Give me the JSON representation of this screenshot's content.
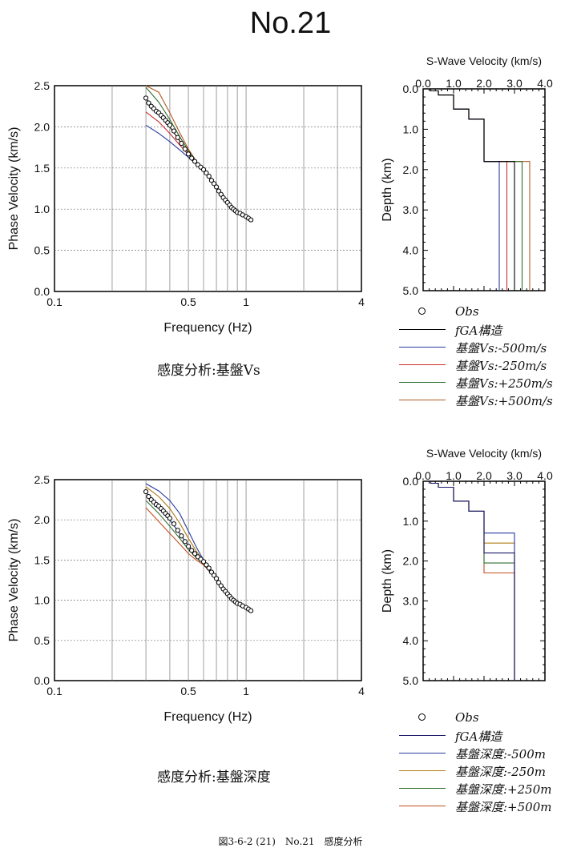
{
  "page": {
    "title": "No.21",
    "caption": "図3-6-2 (21)　No.21　感度分析"
  },
  "sections": [
    {
      "subtitle": "感度分析:基盤Vs"
    },
    {
      "subtitle": "感度分析:基盤深度"
    }
  ],
  "legends": [
    [
      {
        "label": "Obs",
        "color": "#000000",
        "marker": "circle"
      },
      {
        "label": "fGA構造",
        "color": "#000000",
        "marker": "line"
      },
      {
        "label": "基盤Vs:-500m/s",
        "color": "#2a3aa0",
        "marker": "line"
      },
      {
        "label": "基盤Vs:-250m/s",
        "color": "#c83030",
        "marker": "line"
      },
      {
        "label": "基盤Vs:+250m/s",
        "color": "#2f6e2f",
        "marker": "line"
      },
      {
        "label": "基盤Vs:+500m/s",
        "color": "#b05a20",
        "marker": "line"
      }
    ],
    [
      {
        "label": "Obs",
        "color": "#000000",
        "marker": "circle"
      },
      {
        "label": "fGA構造",
        "color": "#1a1a6a",
        "marker": "line"
      },
      {
        "label": "基盤深度:-500m",
        "color": "#2a3aa0",
        "marker": "line"
      },
      {
        "label": "基盤深度:-250m",
        "color": "#b07a10",
        "marker": "line"
      },
      {
        "label": "基盤深度:+250m",
        "color": "#2f6e2f",
        "marker": "line"
      },
      {
        "label": "基盤深度:+500m",
        "color": "#c05020",
        "marker": "line"
      }
    ]
  ],
  "chart_data": [
    {
      "type": "line",
      "xlabel": "Frequency (Hz)",
      "ylabel": "Phase Velocity (km/s)",
      "xscale": "log",
      "xlim": [
        0.1,
        4
      ],
      "ylim": [
        0,
        2.5
      ],
      "xticks": [
        0.1,
        0.5,
        1,
        4
      ],
      "yticks": [
        0.0,
        0.5,
        1.0,
        1.5,
        2.0,
        2.5
      ],
      "grid": true,
      "obs": {
        "x": [
          0.3,
          0.31,
          0.32,
          0.33,
          0.34,
          0.35,
          0.36,
          0.37,
          0.38,
          0.39,
          0.4,
          0.42,
          0.44,
          0.46,
          0.48,
          0.5,
          0.52,
          0.54,
          0.56,
          0.58,
          0.6,
          0.62,
          0.64,
          0.66,
          0.68,
          0.7,
          0.72,
          0.74,
          0.76,
          0.78,
          0.8,
          0.82,
          0.84,
          0.86,
          0.88,
          0.9,
          0.93,
          0.96,
          1.0,
          1.03,
          1.06
        ],
        "y": [
          2.35,
          2.29,
          2.25,
          2.22,
          2.19,
          2.17,
          2.14,
          2.11,
          2.08,
          2.05,
          2.02,
          1.95,
          1.87,
          1.8,
          1.73,
          1.67,
          1.62,
          1.58,
          1.54,
          1.51,
          1.48,
          1.44,
          1.4,
          1.35,
          1.31,
          1.27,
          1.22,
          1.18,
          1.14,
          1.11,
          1.08,
          1.05,
          1.02,
          1.0,
          0.98,
          0.96,
          0.95,
          0.93,
          0.91,
          0.89,
          0.87
        ]
      },
      "series": [
        {
          "name": "fGA構造",
          "color": "#000000",
          "x": [
            0.3,
            0.35,
            0.4,
            0.45,
            0.5,
            0.55,
            0.6,
            0.7,
            0.8,
            0.9,
            1.0,
            1.06
          ],
          "y": [
            2.34,
            2.18,
            2.0,
            1.83,
            1.68,
            1.56,
            1.47,
            1.27,
            1.1,
            0.97,
            0.91,
            0.87
          ]
        },
        {
          "name": "基盤Vs:-500m/s",
          "color": "#2a3aa0",
          "x": [
            0.3,
            0.35,
            0.4,
            0.45,
            0.5,
            0.55,
            0.6,
            0.7,
            0.8,
            0.9,
            1.0,
            1.06
          ],
          "y": [
            2.02,
            1.92,
            1.82,
            1.72,
            1.63,
            1.55,
            1.47,
            1.27,
            1.1,
            0.97,
            0.91,
            0.87
          ]
        },
        {
          "name": "基盤Vs:-250m/s",
          "color": "#c83030",
          "x": [
            0.3,
            0.35,
            0.4,
            0.45,
            0.5,
            0.55,
            0.6,
            0.7,
            0.8,
            0.9,
            1.0,
            1.06
          ],
          "y": [
            2.18,
            2.06,
            1.92,
            1.78,
            1.66,
            1.56,
            1.47,
            1.27,
            1.1,
            0.97,
            0.91,
            0.87
          ]
        },
        {
          "name": "基盤Vs:+250m/s",
          "color": "#2f6e2f",
          "x": [
            0.3,
            0.35,
            0.4,
            0.45,
            0.5,
            0.55,
            0.6,
            0.7,
            0.8,
            0.9,
            1.0,
            1.06
          ],
          "y": [
            2.48,
            2.3,
            2.09,
            1.88,
            1.71,
            1.57,
            1.47,
            1.27,
            1.1,
            0.97,
            0.91,
            0.87
          ]
        },
        {
          "name": "基盤Vs:+500m/s",
          "color": "#b05a20",
          "x": [
            0.3,
            0.35,
            0.4,
            0.45,
            0.5,
            0.55,
            0.6,
            0.7,
            0.8,
            0.9,
            1.0,
            1.06
          ],
          "y": [
            2.5,
            2.42,
            2.17,
            1.93,
            1.73,
            1.58,
            1.47,
            1.27,
            1.1,
            0.97,
            0.91,
            0.87
          ]
        }
      ]
    },
    {
      "type": "line",
      "title": "S-Wave Velocity (km/s)",
      "xlabel": "S-Wave Velocity (km/s)",
      "ylabel": "Depth (km)",
      "xlim": [
        0,
        4
      ],
      "ylim": [
        0,
        5
      ],
      "xticks": [
        0.0,
        1.0,
        2.0,
        3.0,
        4.0
      ],
      "yticks": [
        0.0,
        1.0,
        2.0,
        3.0,
        4.0,
        5.0
      ],
      "y_inverted": true,
      "x_axis_position": "top",
      "profiles": [
        {
          "name": "fGA構造",
          "color": "#000000",
          "vs": [
            0.25,
            0.5,
            1.0,
            1.5,
            2.0,
            3.0
          ],
          "bottom": [
            0.05,
            0.15,
            0.5,
            0.75,
            1.8,
            5.0
          ]
        },
        {
          "name": "基盤Vs:-500m/s",
          "color": "#2a3aa0",
          "vs": [
            0.25,
            0.5,
            1.0,
            1.5,
            2.0,
            2.5
          ],
          "bottom": [
            0.05,
            0.15,
            0.5,
            0.75,
            1.8,
            5.0
          ]
        },
        {
          "name": "基盤Vs:-250m/s",
          "color": "#c83030",
          "vs": [
            0.25,
            0.5,
            1.0,
            1.5,
            2.0,
            2.75
          ],
          "bottom": [
            0.05,
            0.15,
            0.5,
            0.75,
            1.8,
            5.0
          ]
        },
        {
          "name": "基盤Vs:+250m/s",
          "color": "#2f6e2f",
          "vs": [
            0.25,
            0.5,
            1.0,
            1.5,
            2.0,
            3.25
          ],
          "bottom": [
            0.05,
            0.15,
            0.5,
            0.75,
            1.8,
            5.0
          ]
        },
        {
          "name": "基盤Vs:+500m/s",
          "color": "#b05a20",
          "vs": [
            0.25,
            0.5,
            1.0,
            1.5,
            2.0,
            3.5
          ],
          "bottom": [
            0.05,
            0.15,
            0.5,
            0.75,
            1.8,
            5.0
          ]
        }
      ]
    },
    {
      "type": "line",
      "xlabel": "Frequency (Hz)",
      "ylabel": "Phase Velocity (km/s)",
      "xscale": "log",
      "xlim": [
        0.1,
        4
      ],
      "ylim": [
        0,
        2.5
      ],
      "xticks": [
        0.1,
        0.5,
        1,
        4
      ],
      "yticks": [
        0.0,
        0.5,
        1.0,
        1.5,
        2.0,
        2.5
      ],
      "grid": true,
      "obs": {
        "x": [
          0.3,
          0.31,
          0.32,
          0.33,
          0.34,
          0.35,
          0.36,
          0.37,
          0.38,
          0.39,
          0.4,
          0.42,
          0.44,
          0.46,
          0.48,
          0.5,
          0.52,
          0.54,
          0.56,
          0.58,
          0.6,
          0.62,
          0.64,
          0.66,
          0.68,
          0.7,
          0.72,
          0.74,
          0.76,
          0.78,
          0.8,
          0.82,
          0.84,
          0.86,
          0.88,
          0.9,
          0.93,
          0.96,
          1.0,
          1.03,
          1.06
        ],
        "y": [
          2.35,
          2.29,
          2.25,
          2.22,
          2.19,
          2.17,
          2.14,
          2.11,
          2.08,
          2.05,
          2.02,
          1.95,
          1.87,
          1.8,
          1.73,
          1.67,
          1.62,
          1.58,
          1.54,
          1.51,
          1.48,
          1.44,
          1.4,
          1.35,
          1.31,
          1.27,
          1.22,
          1.18,
          1.14,
          1.11,
          1.08,
          1.05,
          1.02,
          1.0,
          0.98,
          0.96,
          0.95,
          0.93,
          0.91,
          0.89,
          0.87
        ]
      },
      "series": [
        {
          "name": "fGA構造",
          "color": "#1a1a6a",
          "x": [
            0.3,
            0.35,
            0.4,
            0.45,
            0.5,
            0.55,
            0.6,
            0.7,
            0.8,
            0.9,
            1.0,
            1.06
          ],
          "y": [
            2.34,
            2.18,
            2.0,
            1.83,
            1.68,
            1.56,
            1.47,
            1.27,
            1.1,
            0.97,
            0.91,
            0.87
          ]
        },
        {
          "name": "基盤深度:-500m",
          "color": "#2a3aa0",
          "x": [
            0.3,
            0.35,
            0.4,
            0.45,
            0.5,
            0.55,
            0.6,
            0.7,
            0.8,
            0.9,
            1.0,
            1.06
          ],
          "y": [
            2.45,
            2.36,
            2.24,
            2.08,
            1.86,
            1.66,
            1.5,
            1.28,
            1.1,
            0.97,
            0.91,
            0.87
          ]
        },
        {
          "name": "基盤深度:-250m",
          "color": "#b07a10",
          "x": [
            0.3,
            0.35,
            0.4,
            0.45,
            0.5,
            0.55,
            0.6,
            0.7,
            0.8,
            0.9,
            1.0,
            1.06
          ],
          "y": [
            2.41,
            2.29,
            2.14,
            1.96,
            1.77,
            1.61,
            1.49,
            1.27,
            1.1,
            0.97,
            0.91,
            0.87
          ]
        },
        {
          "name": "基盤深度:+250m",
          "color": "#2f6e2f",
          "x": [
            0.3,
            0.35,
            0.4,
            0.45,
            0.5,
            0.55,
            0.6,
            0.7,
            0.8,
            0.9,
            1.0,
            1.06
          ],
          "y": [
            2.24,
            2.08,
            1.92,
            1.77,
            1.63,
            1.53,
            1.46,
            1.26,
            1.1,
            0.97,
            0.91,
            0.87
          ]
        },
        {
          "name": "基盤深度:+500m",
          "color": "#c05020",
          "x": [
            0.3,
            0.35,
            0.4,
            0.45,
            0.5,
            0.55,
            0.6,
            0.7,
            0.8,
            0.9,
            1.0,
            1.06
          ],
          "y": [
            2.15,
            1.98,
            1.83,
            1.7,
            1.58,
            1.5,
            1.44,
            1.26,
            1.1,
            0.97,
            0.91,
            0.87
          ]
        }
      ]
    },
    {
      "type": "line",
      "title": "S-Wave Velocity (km/s)",
      "xlabel": "S-Wave Velocity (km/s)",
      "ylabel": "Depth (km)",
      "xlim": [
        0,
        4
      ],
      "ylim": [
        0,
        5
      ],
      "xticks": [
        0.0,
        1.0,
        2.0,
        3.0,
        4.0
      ],
      "yticks": [
        0.0,
        1.0,
        2.0,
        3.0,
        4.0,
        5.0
      ],
      "y_inverted": true,
      "x_axis_position": "top",
      "profiles": [
        {
          "name": "fGA構造",
          "color": "#1a1a6a",
          "vs": [
            0.25,
            0.5,
            1.0,
            1.5,
            2.0,
            3.0
          ],
          "bottom": [
            0.05,
            0.15,
            0.5,
            0.75,
            1.8,
            5.0
          ]
        },
        {
          "name": "基盤深度:-500m",
          "color": "#2a3aa0",
          "vs": [
            0.25,
            0.5,
            1.0,
            1.5,
            2.0,
            3.0
          ],
          "bottom": [
            0.05,
            0.15,
            0.5,
            0.75,
            1.3,
            5.0
          ]
        },
        {
          "name": "基盤深度:-250m",
          "color": "#b07a10",
          "vs": [
            0.25,
            0.5,
            1.0,
            1.5,
            2.0,
            3.0
          ],
          "bottom": [
            0.05,
            0.15,
            0.5,
            0.75,
            1.55,
            5.0
          ]
        },
        {
          "name": "基盤深度:+250m",
          "color": "#2f6e2f",
          "vs": [
            0.25,
            0.5,
            1.0,
            1.5,
            2.0,
            3.0
          ],
          "bottom": [
            0.05,
            0.15,
            0.5,
            0.75,
            2.05,
            5.0
          ]
        },
        {
          "name": "基盤深度:+500m",
          "color": "#c05020",
          "vs": [
            0.25,
            0.5,
            1.0,
            1.5,
            2.0,
            3.0
          ],
          "bottom": [
            0.05,
            0.15,
            0.5,
            0.75,
            2.3,
            5.0
          ]
        }
      ]
    }
  ]
}
